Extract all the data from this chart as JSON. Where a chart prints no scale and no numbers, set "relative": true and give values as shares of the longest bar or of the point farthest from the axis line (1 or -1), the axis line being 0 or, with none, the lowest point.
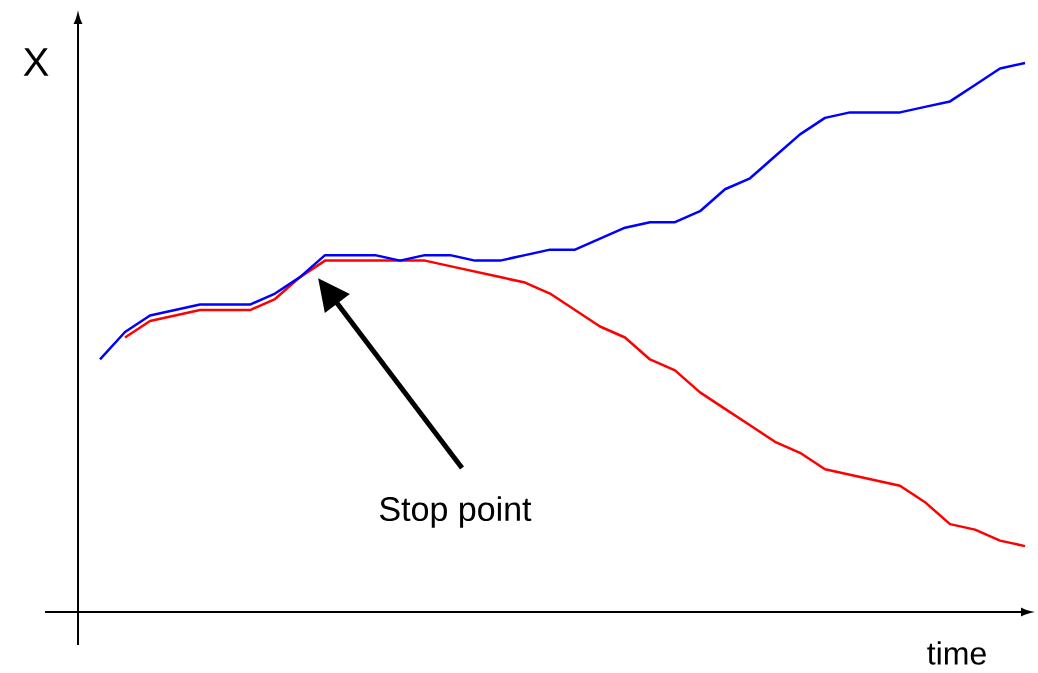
{
  "chart_data": {
    "type": "line",
    "relative": true,
    "xlabel": "time",
    "ylabel": "X",
    "categories": [
      null,
      null,
      null,
      null,
      null,
      null,
      null,
      null,
      null,
      null,
      null,
      null,
      null,
      null,
      null,
      null,
      null,
      null,
      null,
      null,
      null,
      null,
      null,
      null,
      null,
      null,
      null,
      null,
      null,
      null,
      null,
      null,
      null,
      null,
      null,
      null,
      null,
      null
    ],
    "series": [
      {
        "color": "#ff0000",
        "values": [
          null,
          0.5,
          0.53,
          0.54,
          0.55,
          0.55,
          0.55,
          0.57,
          0.61,
          0.64,
          0.64,
          0.64,
          0.64,
          0.64,
          0.63,
          0.62,
          0.61,
          0.6,
          0.58,
          0.55,
          0.52,
          0.5,
          0.46,
          0.44,
          0.4,
          0.37,
          0.34,
          0.31,
          0.29,
          0.26,
          0.25,
          0.24,
          0.23,
          0.2,
          0.16,
          0.15,
          0.13,
          0.12
        ]
      },
      {
        "color": "#0000ff",
        "values": [
          0.46,
          0.51,
          0.54,
          0.55,
          0.56,
          0.56,
          0.56,
          0.58,
          0.61,
          0.65,
          0.65,
          0.65,
          0.64,
          0.65,
          0.65,
          0.64,
          0.64,
          0.65,
          0.66,
          0.66,
          0.68,
          0.7,
          0.71,
          0.71,
          0.73,
          0.77,
          0.79,
          0.83,
          0.87,
          0.9,
          0.91,
          0.91,
          0.91,
          0.92,
          0.93,
          0.96,
          0.99,
          1
        ]
      }
    ],
    "annotations": [
      "Stop point"
    ]
  }
}
